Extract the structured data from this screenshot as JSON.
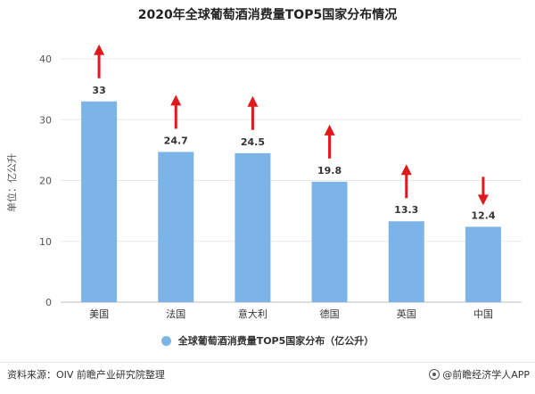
{
  "chart_data": {
    "type": "bar",
    "title": "2020年全球葡萄酒消费量TOP5国家分布情况",
    "ylabel": "单位：亿公升",
    "xlabel": "",
    "ylim": [
      0,
      40
    ],
    "yticks": [
      0,
      10,
      20,
      30,
      40
    ],
    "grid": true,
    "categories": [
      "美国",
      "法国",
      "意大利",
      "德国",
      "英国",
      "中国"
    ],
    "series": [
      {
        "name": "全球葡萄酒消费量TOP5国家分布（亿公升）",
        "values": [
          33,
          24.7,
          24.5,
          19.8,
          13.3,
          12.4
        ],
        "labels": [
          "33",
          "24.7",
          "24.5",
          "19.8",
          "13.3",
          "12.4"
        ]
      }
    ],
    "trend_arrows": [
      "up",
      "up",
      "up",
      "up",
      "up",
      "down"
    ],
    "bar_color": "#7cb4e8",
    "arrow_color": "#e0191a",
    "legend_position": "bottom-center"
  },
  "footer": {
    "source": "资料来源：OIV 前瞻产业研究院整理",
    "brand": "@前瞻经济学人APP"
  }
}
